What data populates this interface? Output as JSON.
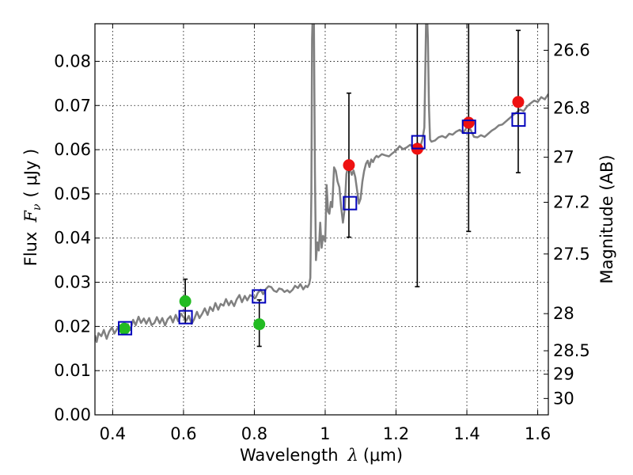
{
  "chart_data": {
    "type": "scatter",
    "xlabel_text": "Wavelength",
    "xlabel_symbol": "λ",
    "xlabel_unit": "(μm)",
    "ylabel_left_prefix": "Flux",
    "ylabel_left_symbol": "F",
    "ylabel_left_sub": "ν",
    "ylabel_left_unit": "( μJy )",
    "ylabel_right": "Magnitude (AB)",
    "xlim": [
      0.35,
      1.63
    ],
    "ylim": [
      0.0,
      0.0885
    ],
    "grid": true,
    "x_ticks": [
      0.4,
      0.6,
      0.8,
      1.0,
      1.2,
      1.4,
      1.6
    ],
    "x_tick_labels": [
      "0.4",
      "0.6",
      "0.8",
      "1",
      "1.2",
      "1.4",
      "1.6"
    ],
    "y_ticks": [
      0.0,
      0.01,
      0.02,
      0.03,
      0.04,
      0.05,
      0.06,
      0.07,
      0.08
    ],
    "y_tick_labels": [
      "0.00",
      "0.01",
      "0.02",
      "0.03",
      "0.04",
      "0.05",
      "0.06",
      "0.07",
      "0.08"
    ],
    "right_ticks": [
      {
        "label": "26.6",
        "flux": 0.0825
      },
      {
        "label": "26.8",
        "flux": 0.0694
      },
      {
        "label": "27",
        "flux": 0.0583
      },
      {
        "label": "27.2",
        "flux": 0.0481
      },
      {
        "label": "27.5",
        "flux": 0.0364
      },
      {
        "label": "28",
        "flux": 0.0229
      },
      {
        "label": "28.5",
        "flux": 0.0145
      },
      {
        "label": "29",
        "flux": 0.0092
      },
      {
        "label": "30",
        "flux": 0.0037
      }
    ],
    "spectrum": {
      "color": "#808080",
      "x": [
        0.35,
        0.355,
        0.36,
        0.368,
        0.375,
        0.383,
        0.39,
        0.398,
        0.405,
        0.413,
        0.42,
        0.428,
        0.435,
        0.443,
        0.45,
        0.458,
        0.465,
        0.473,
        0.48,
        0.488,
        0.495,
        0.503,
        0.51,
        0.518,
        0.525,
        0.533,
        0.54,
        0.548,
        0.555,
        0.563,
        0.57,
        0.578,
        0.585,
        0.593,
        0.6,
        0.608,
        0.615,
        0.623,
        0.63,
        0.638,
        0.645,
        0.653,
        0.66,
        0.668,
        0.675,
        0.683,
        0.69,
        0.698,
        0.705,
        0.713,
        0.72,
        0.728,
        0.735,
        0.743,
        0.75,
        0.758,
        0.765,
        0.773,
        0.78,
        0.788,
        0.795,
        0.803,
        0.81,
        0.818,
        0.825,
        0.833,
        0.84,
        0.848,
        0.855,
        0.863,
        0.87,
        0.878,
        0.885,
        0.893,
        0.9,
        0.908,
        0.915,
        0.923,
        0.93,
        0.938,
        0.945,
        0.95,
        0.955,
        0.958,
        0.961,
        0.963,
        0.966,
        0.968,
        0.971,
        0.974,
        0.978,
        0.982,
        0.986,
        0.99,
        0.994,
        1.0,
        1.004,
        1.008,
        1.012,
        1.016,
        1.02,
        1.025,
        1.03,
        1.035,
        1.04,
        1.045,
        1.05,
        1.055,
        1.06,
        1.065,
        1.07,
        1.075,
        1.08,
        1.085,
        1.09,
        1.095,
        1.1,
        1.105,
        1.11,
        1.115,
        1.12,
        1.125,
        1.13,
        1.135,
        1.14,
        1.145,
        1.15,
        1.16,
        1.17,
        1.18,
        1.19,
        1.2,
        1.21,
        1.22,
        1.23,
        1.24,
        1.25,
        1.26,
        1.27,
        1.275,
        1.28,
        1.283,
        1.286,
        1.29,
        1.293,
        1.296,
        1.3,
        1.31,
        1.32,
        1.33,
        1.34,
        1.35,
        1.36,
        1.37,
        1.38,
        1.39,
        1.4,
        1.41,
        1.42,
        1.43,
        1.44,
        1.45,
        1.46,
        1.47,
        1.48,
        1.49,
        1.5,
        1.51,
        1.52,
        1.53,
        1.54,
        1.55,
        1.56,
        1.57,
        1.58,
        1.59,
        1.6,
        1.61,
        1.62,
        1.63
      ],
      "y": [
        0.018,
        0.0165,
        0.0185,
        0.0178,
        0.0192,
        0.0172,
        0.0188,
        0.0198,
        0.0184,
        0.0195,
        0.0202,
        0.0182,
        0.0198,
        0.0205,
        0.0192,
        0.0215,
        0.0203,
        0.0222,
        0.0208,
        0.0218,
        0.0206,
        0.0219,
        0.0203,
        0.0208,
        0.0221,
        0.0207,
        0.0219,
        0.0202,
        0.0216,
        0.0223,
        0.0209,
        0.0226,
        0.0212,
        0.0229,
        0.0221,
        0.0213,
        0.0224,
        0.0206,
        0.0216,
        0.0233,
        0.0219,
        0.0229,
        0.0241,
        0.0226,
        0.0244,
        0.0235,
        0.0253,
        0.0238,
        0.0251,
        0.0247,
        0.0262,
        0.0248,
        0.0258,
        0.0246,
        0.0261,
        0.0271,
        0.0255,
        0.0269,
        0.0259,
        0.0271,
        0.0268,
        0.0264,
        0.0276,
        0.0283,
        0.0273,
        0.0285,
        0.0291,
        0.0289,
        0.0281,
        0.0278,
        0.0286,
        0.0284,
        0.0278,
        0.0282,
        0.0277,
        0.0283,
        0.0292,
        0.0287,
        0.0296,
        0.0284,
        0.0292,
        0.0289,
        0.0296,
        0.031,
        0.05,
        0.085,
        0.095,
        0.09,
        0.055,
        0.035,
        0.039,
        0.0372,
        0.0435,
        0.0378,
        0.0405,
        0.0392,
        0.052,
        0.046,
        0.0455,
        0.0482,
        0.047,
        0.056,
        0.0552,
        0.0528,
        0.0515,
        0.0471,
        0.0435,
        0.0466,
        0.0545,
        0.0563,
        0.0556,
        0.0543,
        0.0553,
        0.0538,
        0.0508,
        0.0478,
        0.0489,
        0.0528,
        0.0552,
        0.0568,
        0.0575,
        0.0561,
        0.0578,
        0.0572,
        0.0581,
        0.0586,
        0.0583,
        0.059,
        0.0587,
        0.0585,
        0.0592,
        0.0598,
        0.0608,
        0.0601,
        0.0605,
        0.0611,
        0.0604,
        0.0615,
        0.061,
        0.0625,
        0.065,
        0.08,
        0.095,
        0.085,
        0.07,
        0.0623,
        0.0618,
        0.0621,
        0.0628,
        0.0631,
        0.0627,
        0.0636,
        0.0634,
        0.0641,
        0.0645,
        0.0638,
        0.0651,
        0.0646,
        0.0629,
        0.0628,
        0.0633,
        0.0629,
        0.0636,
        0.0643,
        0.0648,
        0.0655,
        0.0657,
        0.0664,
        0.0671,
        0.0678,
        0.0684,
        0.0691,
        0.0687,
        0.0698,
        0.0705,
        0.0711,
        0.0708,
        0.0719,
        0.0714,
        0.0726
      ]
    },
    "series": [
      {
        "marker": "circle",
        "color": "#22bb22",
        "points": [
          {
            "x": 0.433,
            "y": 0.0195,
            "err": null
          },
          {
            "x": 0.605,
            "y": 0.0257,
            "err": [
              0.0207,
              0.0307
            ]
          },
          {
            "x": 0.814,
            "y": 0.0205,
            "err": [
              0.0155,
              0.026
            ]
          }
        ]
      },
      {
        "marker": "circle",
        "color": "#ee1111",
        "points": [
          {
            "x": 1.067,
            "y": 0.0565,
            "err": [
              0.0402,
              0.0728
            ]
          },
          {
            "x": 1.26,
            "y": 0.0602,
            "err": [
              0.029,
              0.092
            ]
          },
          {
            "x": 1.405,
            "y": 0.0661,
            "err": [
              0.0415,
              0.092
            ]
          },
          {
            "x": 1.545,
            "y": 0.0708,
            "err": [
              0.0548,
              0.087
            ]
          }
        ]
      },
      {
        "marker": "square",
        "color": "#0000bb",
        "points": [
          {
            "x": 0.435,
            "y": 0.0196
          },
          {
            "x": 0.606,
            "y": 0.0221
          },
          {
            "x": 0.813,
            "y": 0.0268
          },
          {
            "x": 1.07,
            "y": 0.0479
          },
          {
            "x": 1.263,
            "y": 0.0617
          },
          {
            "x": 1.406,
            "y": 0.0652
          },
          {
            "x": 1.546,
            "y": 0.0668
          }
        ]
      }
    ]
  }
}
